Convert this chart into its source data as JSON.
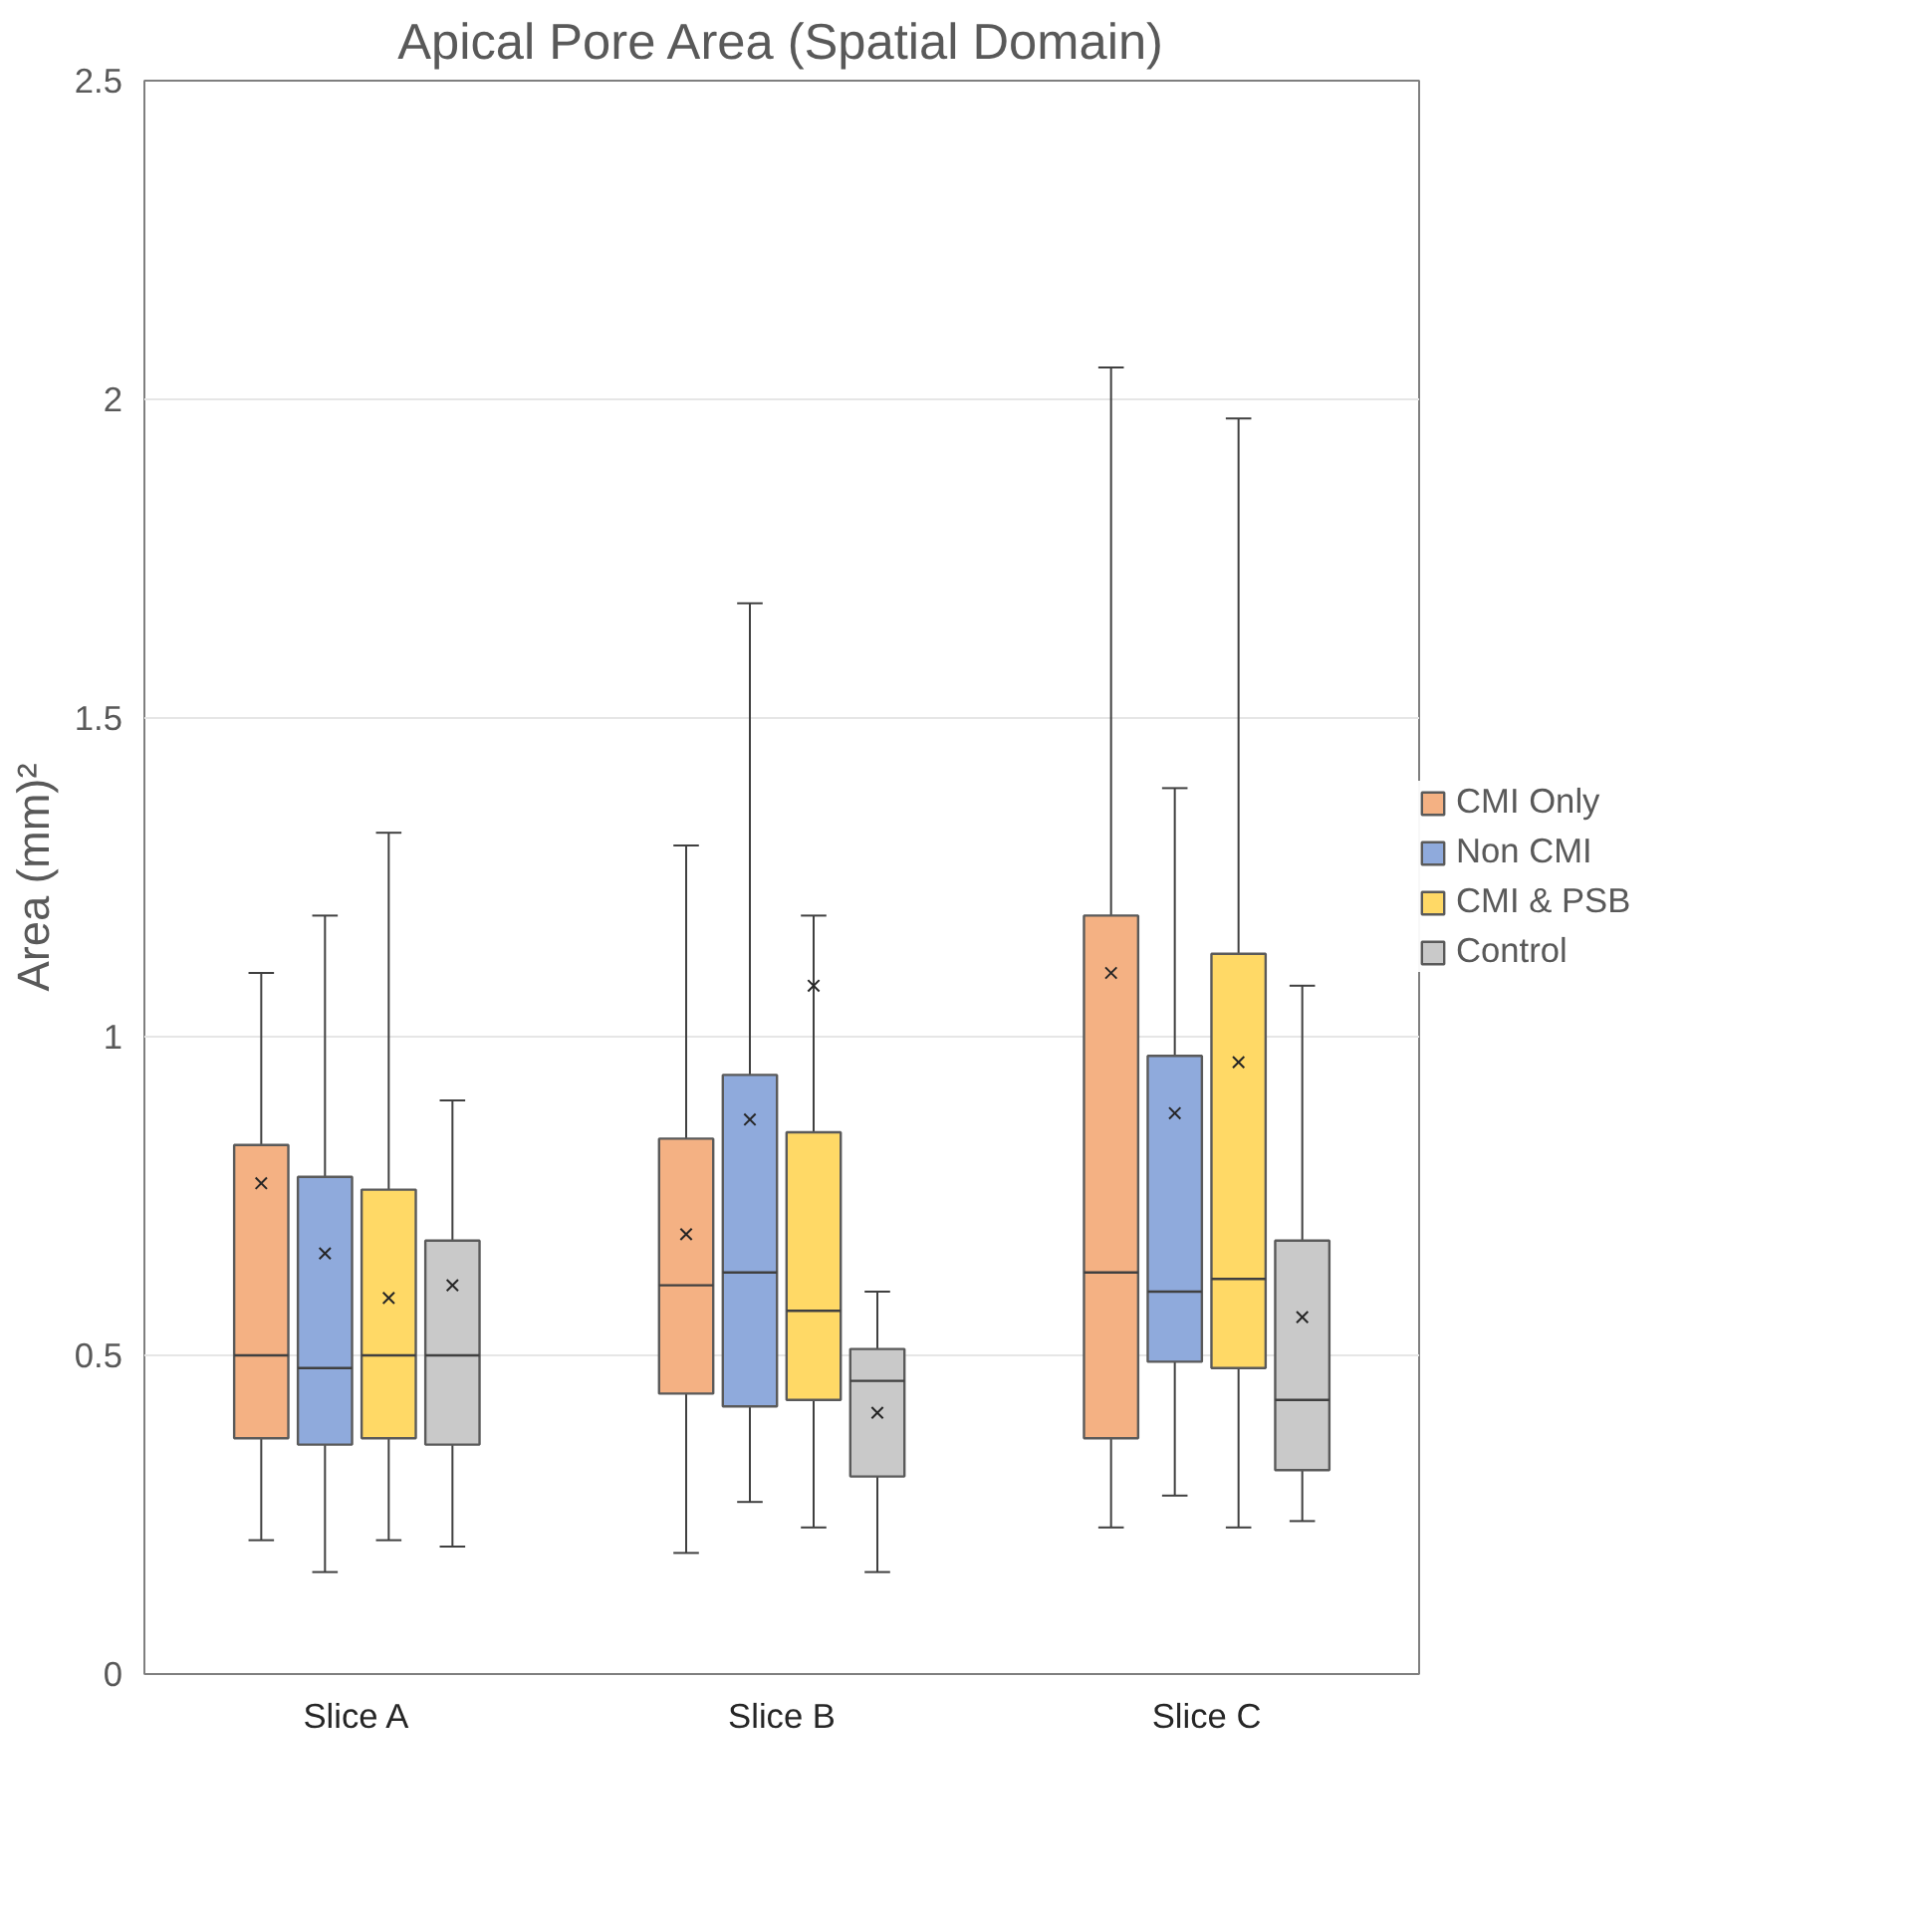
{
  "chart_data": {
    "type": "box",
    "title": "Apical Pore Area (Spatial Domain)",
    "ylabel": "Area (mm)²",
    "categories": [
      "Slice A",
      "Slice B",
      "Slice C"
    ],
    "ylim": [
      0,
      2.5
    ],
    "yticks": [
      0,
      0.5,
      1,
      1.5,
      2,
      2.5
    ],
    "grid": "y",
    "legend": "right",
    "series": [
      {
        "name": "CMI Only",
        "color": "#f4b183",
        "boxes": [
          {
            "low": 0.21,
            "q1": 0.37,
            "median": 0.5,
            "q3": 0.83,
            "high": 1.1,
            "mean": 0.77
          },
          {
            "low": 0.19,
            "q1": 0.44,
            "median": 0.61,
            "q3": 0.84,
            "high": 1.3,
            "mean": 0.69
          },
          {
            "low": 0.23,
            "q1": 0.37,
            "median": 0.63,
            "q3": 1.19,
            "high": 2.05,
            "mean": 1.1
          }
        ]
      },
      {
        "name": "Non CMI",
        "color": "#8faadc",
        "boxes": [
          {
            "low": 0.16,
            "q1": 0.36,
            "median": 0.48,
            "q3": 0.78,
            "high": 1.19,
            "mean": 0.66
          },
          {
            "low": 0.27,
            "q1": 0.42,
            "median": 0.63,
            "q3": 0.94,
            "high": 1.68,
            "mean": 0.87
          },
          {
            "low": 0.28,
            "q1": 0.49,
            "median": 0.6,
            "q3": 0.97,
            "high": 1.39,
            "mean": 0.88
          }
        ]
      },
      {
        "name": "CMI & PSB",
        "color": "#ffd966",
        "boxes": [
          {
            "low": 0.21,
            "q1": 0.37,
            "median": 0.5,
            "q3": 0.76,
            "high": 1.32,
            "mean": 0.59
          },
          {
            "low": 0.23,
            "q1": 0.43,
            "median": 0.57,
            "q3": 0.85,
            "high": 1.19,
            "mean": 1.08
          },
          {
            "low": 0.23,
            "q1": 0.48,
            "median": 0.62,
            "q3": 1.13,
            "high": 1.97,
            "mean": 0.96
          }
        ]
      },
      {
        "name": "Control",
        "color": "#c9c9c9",
        "boxes": [
          {
            "low": 0.2,
            "q1": 0.36,
            "median": 0.5,
            "q3": 0.68,
            "high": 0.9,
            "mean": 0.61
          },
          {
            "low": 0.16,
            "q1": 0.31,
            "median": 0.46,
            "q3": 0.51,
            "high": 0.6,
            "mean": 0.41
          },
          {
            "low": 0.24,
            "q1": 0.32,
            "median": 0.43,
            "q3": 0.68,
            "high": 1.08,
            "mean": 0.56
          }
        ]
      }
    ]
  }
}
